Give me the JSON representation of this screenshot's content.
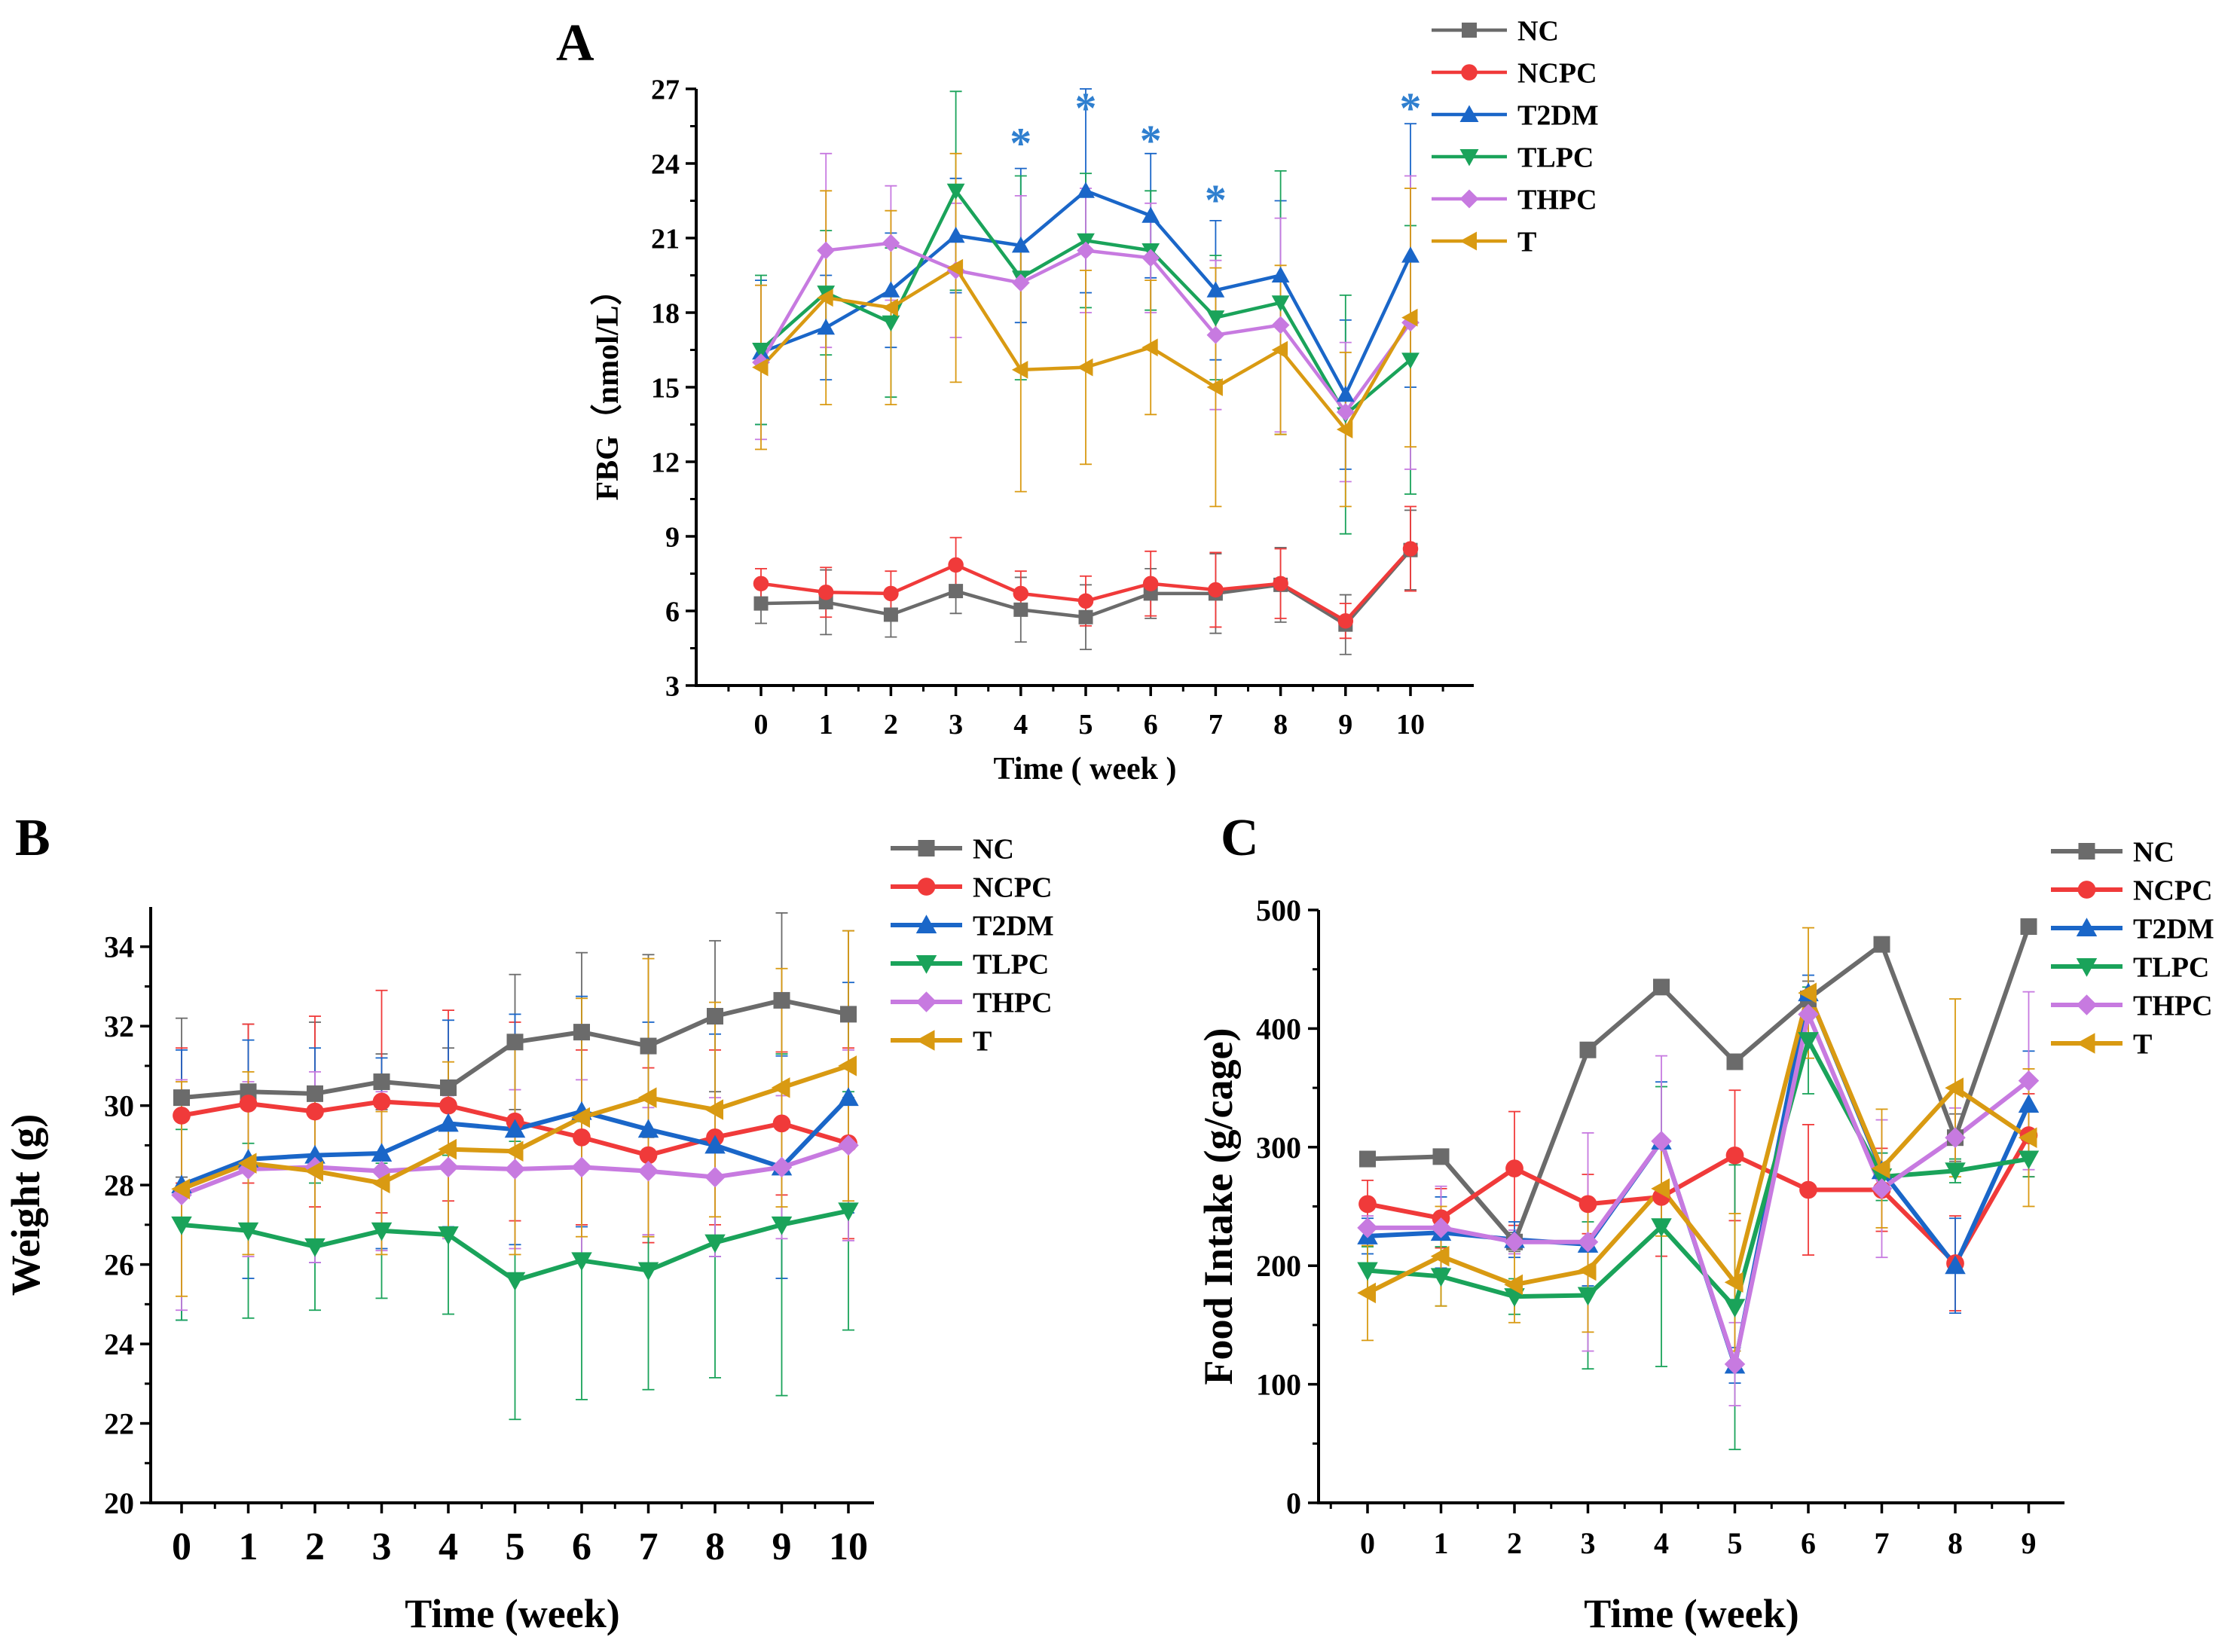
{
  "colors": {
    "NC": "#6b6b6b",
    "NCPC": "#f03a3a",
    "T2DM": "#1a66c8",
    "TLPC": "#1aa35a",
    "THPC": "#c77ae0",
    "T": "#d99a12",
    "sig": "#2f7fcf"
  },
  "markers": {
    "NC": "square",
    "NCPC": "circle",
    "T2DM": "triangle-up",
    "TLPC": "triangle-down",
    "THPC": "diamond",
    "T": "triangle-left"
  },
  "chart_data": [
    {
      "panel": "A",
      "type": "line",
      "title": "",
      "xlabel": "Time ( week )",
      "ylabel": "FBG（nmol/L）",
      "x": [
        0,
        1,
        2,
        3,
        4,
        5,
        6,
        7,
        8,
        9,
        10
      ],
      "ylim": [
        3,
        27
      ],
      "yticks": [
        3,
        6,
        9,
        12,
        15,
        18,
        21,
        24,
        27
      ],
      "legend_position": "top-right, outside plot",
      "significance_marker": "*",
      "significance_x": [
        4,
        5,
        6,
        7,
        10
      ],
      "significance_y": [
        24.9,
        26.3,
        25.0,
        22.6,
        26.3
      ],
      "series": [
        {
          "name": "NC",
          "values": [
            6.3,
            6.35,
            5.85,
            6.8,
            6.05,
            5.75,
            6.7,
            6.7,
            7.05,
            5.45,
            8.45
          ],
          "errors": [
            0.8,
            1.3,
            0.9,
            0.9,
            1.3,
            1.3,
            1.0,
            1.6,
            1.5,
            1.2,
            1.6
          ]
        },
        {
          "name": "NCPC",
          "values": [
            7.1,
            6.75,
            6.7,
            7.85,
            6.7,
            6.4,
            7.1,
            6.85,
            7.1,
            5.6,
            8.5
          ],
          "errors": [
            0.6,
            1.0,
            0.9,
            1.1,
            0.9,
            1.0,
            1.3,
            1.5,
            1.4,
            0.7,
            1.7
          ]
        },
        {
          "name": "T2DM",
          "values": [
            16.4,
            17.4,
            18.9,
            21.1,
            20.7,
            22.9,
            21.9,
            18.9,
            19.5,
            14.7,
            20.3
          ],
          "errors": [
            2.9,
            2.1,
            2.3,
            2.3,
            3.1,
            4.1,
            2.5,
            2.8,
            3.0,
            3.0,
            5.3
          ]
        },
        {
          "name": "TLPC",
          "values": [
            16.5,
            18.8,
            17.6,
            22.9,
            19.4,
            20.9,
            20.5,
            17.8,
            18.4,
            13.9,
            16.1
          ],
          "errors": [
            3.0,
            2.5,
            3.0,
            4.0,
            4.1,
            2.7,
            2.4,
            2.5,
            5.3,
            4.8,
            5.4
          ]
        },
        {
          "name": "THPC",
          "values": [
            16.0,
            20.5,
            20.8,
            19.7,
            19.2,
            20.5,
            20.2,
            17.1,
            17.5,
            14.0,
            17.6
          ],
          "errors": [
            3.1,
            3.9,
            2.3,
            2.7,
            3.5,
            2.5,
            2.2,
            3.0,
            4.3,
            2.8,
            5.9
          ]
        },
        {
          "name": "T",
          "values": [
            15.8,
            18.6,
            18.2,
            19.8,
            15.7,
            15.8,
            16.6,
            15.0,
            16.5,
            13.3,
            17.8
          ],
          "errors": [
            3.3,
            4.3,
            3.9,
            4.6,
            4.9,
            3.9,
            2.7,
            4.8,
            3.4,
            3.1,
            5.2
          ]
        }
      ]
    },
    {
      "panel": "B",
      "type": "line",
      "title": "",
      "xlabel": "Time (week)",
      "ylabel": "Weight (g)",
      "x": [
        0,
        1,
        2,
        3,
        4,
        5,
        6,
        7,
        8,
        9,
        10
      ],
      "ylim": [
        20,
        35
      ],
      "yticks": [
        20,
        22,
        24,
        26,
        28,
        30,
        32,
        34
      ],
      "legend_position": "top-right, outside plot",
      "series": [
        {
          "name": "NC",
          "values": [
            30.2,
            30.35,
            30.3,
            30.6,
            30.45,
            31.6,
            31.85,
            31.5,
            32.25,
            32.65,
            32.3
          ],
          "errors": [
            2.0,
            1.7,
            1.8,
            0.7,
            1.0,
            1.7,
            2.0,
            2.3,
            1.9,
            2.2,
            2.1
          ]
        },
        {
          "name": "NCPC",
          "values": [
            29.75,
            30.05,
            29.85,
            30.1,
            30.0,
            29.6,
            29.2,
            28.75,
            29.2,
            29.55,
            29.05
          ],
          "errors": [
            1.7,
            2.0,
            2.4,
            2.8,
            2.4,
            2.5,
            2.2,
            2.2,
            2.2,
            1.8,
            2.4
          ]
        },
        {
          "name": "T2DM",
          "values": [
            28.0,
            28.65,
            28.75,
            28.8,
            29.55,
            29.4,
            29.85,
            29.4,
            29.0,
            28.45,
            30.2
          ],
          "errors": [
            3.4,
            3.0,
            2.7,
            2.4,
            2.6,
            2.9,
            2.9,
            2.7,
            2.8,
            2.8,
            2.9
          ]
        },
        {
          "name": "TLPC",
          "values": [
            27.0,
            26.85,
            26.45,
            26.85,
            26.75,
            25.6,
            26.1,
            25.85,
            26.55,
            27.0,
            27.35
          ],
          "errors": [
            2.4,
            2.2,
            1.6,
            1.7,
            2.0,
            3.5,
            3.5,
            3.0,
            3.4,
            4.3,
            3.0
          ]
        },
        {
          "name": "THPC",
          "values": [
            27.75,
            28.4,
            28.45,
            28.35,
            28.45,
            28.4,
            28.45,
            28.35,
            28.2,
            28.45,
            29.0
          ],
          "errors": [
            2.9,
            2.2,
            2.4,
            2.0,
            1.8,
            2.0,
            2.2,
            1.6,
            2.0,
            1.8,
            2.4
          ]
        },
        {
          "name": "T",
          "values": [
            27.9,
            28.55,
            28.35,
            28.05,
            28.9,
            28.85,
            29.7,
            30.2,
            29.9,
            30.45,
            31.0
          ],
          "errors": [
            2.7,
            2.3,
            1.9,
            1.8,
            2.2,
            2.6,
            3.0,
            3.5,
            2.7,
            3.0,
            3.4
          ]
        }
      ]
    },
    {
      "panel": "C",
      "type": "line",
      "title": "",
      "xlabel": "Time (week)",
      "ylabel": "Food Intake (g/cage)",
      "x": [
        0,
        1,
        2,
        3,
        4,
        5,
        6,
        7,
        8,
        9
      ],
      "ylim": [
        0,
        500
      ],
      "yticks": [
        0,
        100,
        200,
        300,
        400,
        500
      ],
      "legend_position": "top-right, outside plot",
      "series": [
        {
          "name": "NC",
          "values": [
            290,
            292,
            220,
            382,
            435,
            372,
            425,
            471,
            308,
            486
          ],
          "errors": [
            5,
            5,
            8,
            5,
            5,
            5,
            15,
            5,
            20,
            5
          ]
        },
        {
          "name": "NCPC",
          "values": [
            252,
            240,
            282,
            252,
            258,
            293,
            264,
            264,
            202,
            310
          ],
          "errors": [
            20,
            25,
            48,
            25,
            50,
            55,
            55,
            35,
            40,
            35
          ]
        },
        {
          "name": "T2DM",
          "values": [
            225,
            228,
            222,
            218,
            305,
            116,
            430,
            280,
            200,
            336
          ],
          "errors": [
            15,
            30,
            15,
            35,
            50,
            15,
            15,
            15,
            40,
            45
          ]
        },
        {
          "name": "TLPC",
          "values": [
            196,
            191,
            174,
            175,
            233,
            165,
            390,
            275,
            280,
            290
          ],
          "errors": [
            20,
            25,
            15,
            62,
            118,
            120,
            45,
            20,
            10,
            15
          ]
        },
        {
          "name": "THPC",
          "values": [
            232,
            232,
            220,
            220,
            305,
            117,
            412,
            265,
            308,
            356
          ],
          "errors": [
            10,
            35,
            10,
            92,
            72,
            35,
            20,
            58,
            25,
            75
          ]
        },
        {
          "name": "T",
          "values": [
            177,
            208,
            184,
            196,
            265,
            186,
            430,
            282,
            350,
            308
          ],
          "errors": [
            40,
            42,
            32,
            52,
            40,
            58,
            55,
            50,
            75,
            58
          ]
        }
      ]
    }
  ]
}
